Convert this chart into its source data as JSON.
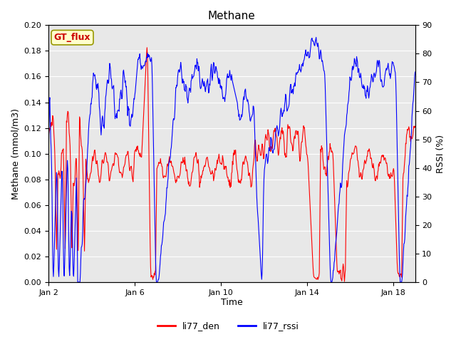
{
  "title": "Methane",
  "ylabel_left": "Methane (mmol/m3)",
  "ylabel_right": "RSSI (%)",
  "xlabel": "Time",
  "ylim_left": [
    0.0,
    0.2
  ],
  "ylim_right": [
    0,
    90
  ],
  "yticks_left": [
    0.0,
    0.02,
    0.04,
    0.06,
    0.08,
    0.1,
    0.12,
    0.14,
    0.16,
    0.18,
    0.2
  ],
  "yticks_right": [
    0,
    10,
    20,
    30,
    40,
    50,
    60,
    70,
    80,
    90
  ],
  "xticks_labels": [
    "Jan 2",
    "Jan 6",
    "Jan 10",
    "Jan 14",
    "Jan 18"
  ],
  "xticks_pos": [
    0,
    4,
    8,
    12,
    16
  ],
  "color_den": "#ff0000",
  "color_rssi": "#0000ff",
  "legend_label_den": "li77_den",
  "legend_label_rssi": "li77_rssi",
  "annotation_text": "GT_flux",
  "annotation_color": "#cc0000",
  "annotation_bg": "#ffffcc",
  "annotation_border": "#999900",
  "plot_bg_color": "#e8e8e8",
  "grid_color": "#ffffff",
  "title_fontsize": 11
}
